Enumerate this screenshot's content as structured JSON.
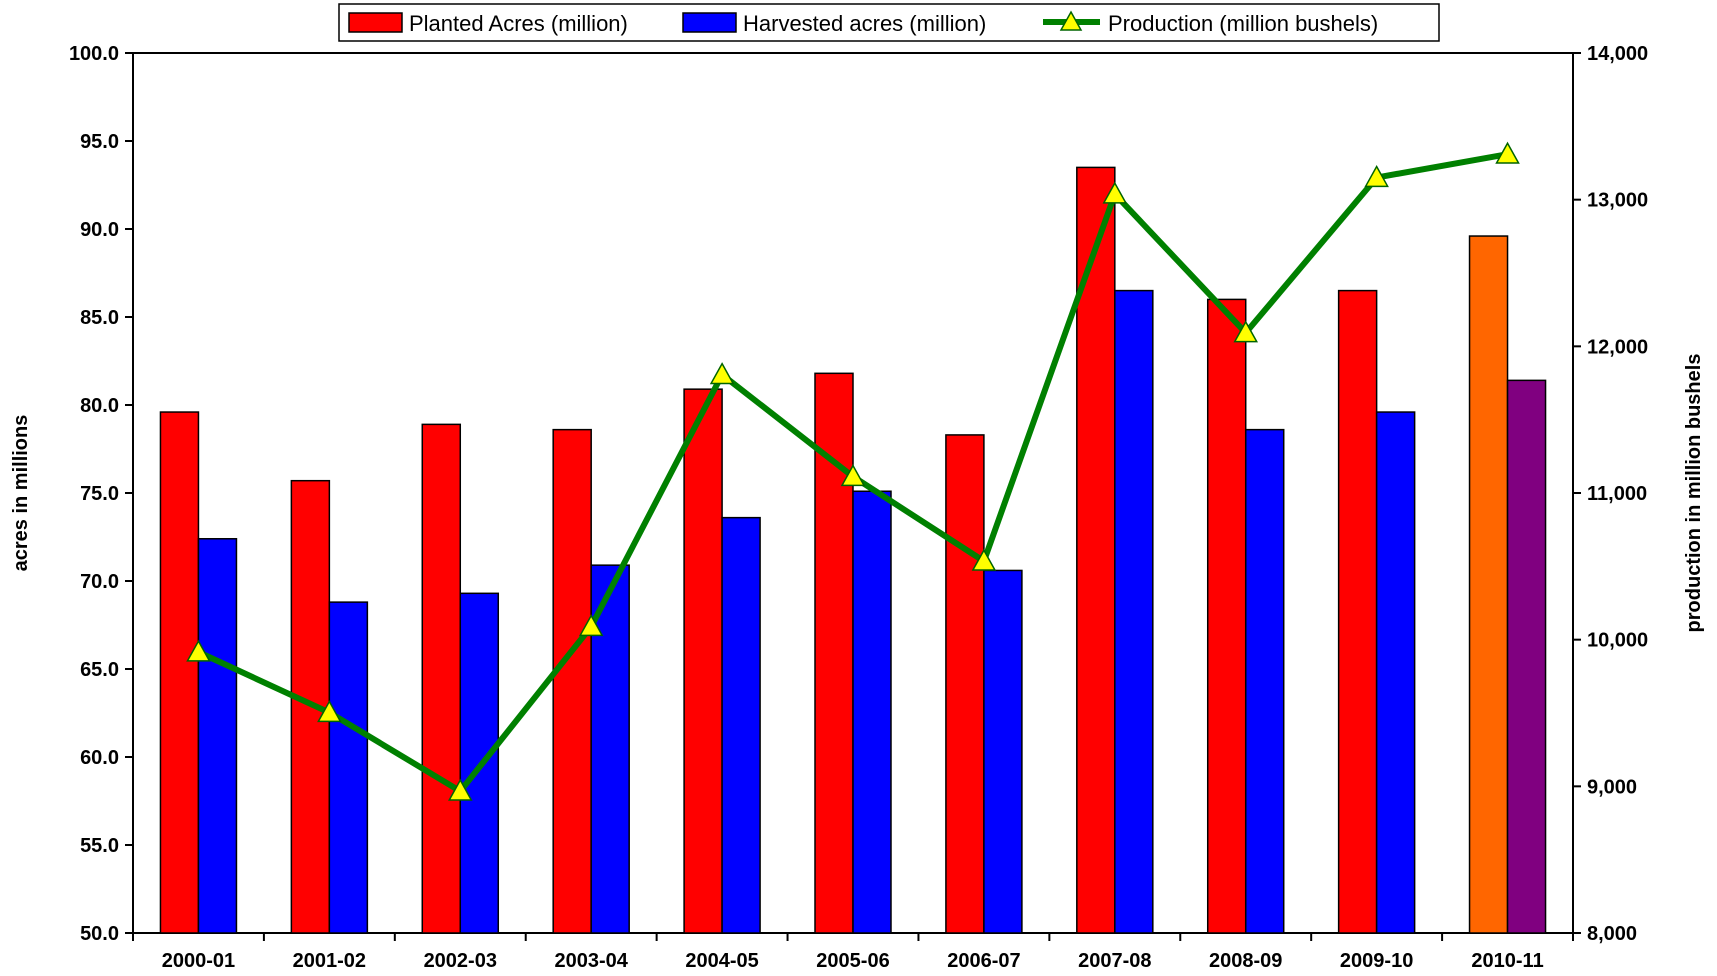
{
  "chart_data": {
    "type": "bar",
    "categories": [
      "2000-01",
      "2001-02",
      "2002-03",
      "2003-04",
      "2004-05",
      "2005-06",
      "2006-07",
      "2007-08",
      "2008-09",
      "2009-10",
      "2010-11"
    ],
    "series": [
      {
        "name": "Planted Acres (million)",
        "kind": "bar",
        "axis": "left",
        "color": "#FF0000",
        "values": [
          79.6,
          75.7,
          78.9,
          78.6,
          80.9,
          81.8,
          78.3,
          93.5,
          86.0,
          86.5,
          89.6
        ],
        "highlight": {
          "index": 10,
          "color": "#FF6600"
        }
      },
      {
        "name": "Harvested acres (million)",
        "kind": "bar",
        "axis": "left",
        "color": "#0000FF",
        "values": [
          72.4,
          68.8,
          69.3,
          70.9,
          73.6,
          75.1,
          70.6,
          86.5,
          78.6,
          79.6,
          81.4
        ],
        "highlight": {
          "index": 10,
          "color": "#800080"
        }
      },
      {
        "name": "Production (million bushels)",
        "kind": "line",
        "axis": "right",
        "color": "#008000",
        "marker": "triangle",
        "marker_color": "#FFFF00",
        "values": [
          9915,
          9503,
          8967,
          10089,
          11807,
          11112,
          10535,
          13038,
          12092,
          13151,
          13310
        ]
      }
    ],
    "ylabel": "acres in millions",
    "ylabel_right": "production in million bushels",
    "ylim": [
      50,
      100
    ],
    "ylim_right": [
      8000,
      14000
    ],
    "yticks": [
      "50.0",
      "55.0",
      "60.0",
      "65.0",
      "70.0",
      "75.0",
      "80.0",
      "85.0",
      "90.0",
      "95.0",
      "100.0"
    ],
    "yticks_right": [
      "8,000",
      "9,000",
      "10,000",
      "11,000",
      "12,000",
      "13,000",
      "14,000"
    ],
    "grid": false,
    "legend_position": "top"
  }
}
